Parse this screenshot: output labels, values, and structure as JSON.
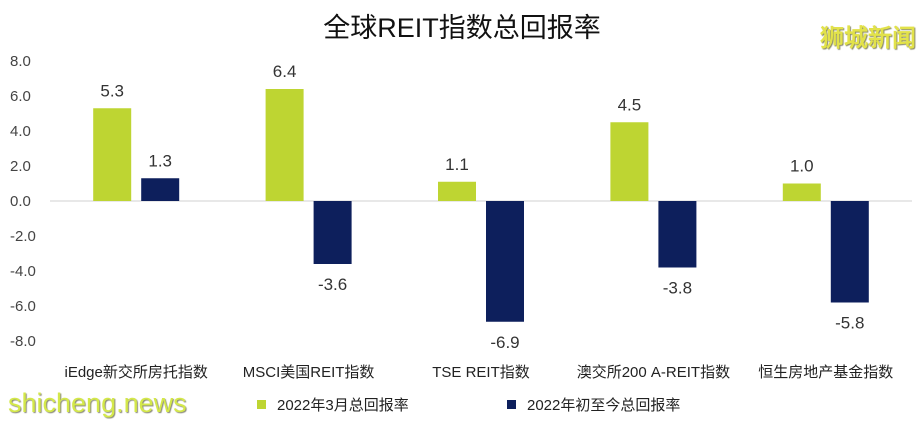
{
  "chart_data": {
    "type": "bar",
    "title": "全球REIT指数总回报率",
    "categories": [
      "iEdge新交所房托指数",
      "MSCI美国REIT指数",
      "TSE REIT指数",
      "澳交所200 A-REIT指数",
      "恒生房地产基金指数"
    ],
    "series": [
      {
        "name": "2022年3月总回报率",
        "values": [
          5.3,
          6.4,
          1.1,
          4.5,
          1.0
        ],
        "color": "#bed532"
      },
      {
        "name": "2022年初至今总回报率",
        "values": [
          1.3,
          -3.6,
          -6.9,
          -3.8,
          -5.8
        ],
        "color": "#0d1f5c"
      }
    ],
    "yticks": [
      "8.0",
      "6.0",
      "4.0",
      "2.0",
      "0.0",
      "-2.0",
      "-4.0",
      "-6.0",
      "-8.0"
    ],
    "ylim": [
      -8,
      8
    ],
    "grid": false,
    "legend": "bottom"
  },
  "watermarks": {
    "top": "狮城新闻",
    "bottom": "shicheng.news"
  }
}
